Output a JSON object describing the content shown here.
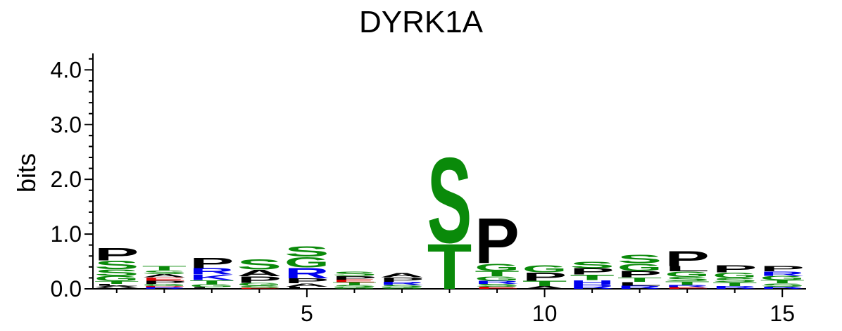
{
  "chart_data": {
    "type": "sequence-logo",
    "title": "DYRK1A",
    "ylabel": "bits",
    "xlabel": "",
    "ylim": [
      0,
      4.3
    ],
    "xlim": [
      0.5,
      15.5
    ],
    "y_ticks": [
      0.0,
      1.0,
      2.0,
      3.0,
      4.0
    ],
    "y_tick_labels": [
      "0.0",
      "1.0",
      "2.0",
      "3.0",
      "4.0"
    ],
    "x_ticks": [
      5,
      10,
      15
    ],
    "x_tick_labels": [
      "5",
      "10",
      "15"
    ],
    "colors": {
      "S": "#0a8a0a",
      "T": "#0a8a0a",
      "G": "#0a8a0a",
      "C": "#0a8a0a",
      "Y": "#0a8a0a",
      "P": "#000000",
      "A": "#000000",
      "L": "#000000",
      "I": "#000000",
      "V": "#000000",
      "M": "#000000",
      "F": "#000000",
      "W": "#000000",
      "R": "#0000ee",
      "K": "#0000ee",
      "H": "#0000ee",
      "D": "#dd0000",
      "E": "#dd0000",
      "N": "#800080",
      "Q": "#800080"
    },
    "positions": [
      {
        "pos": 1,
        "letters": [
          [
            "V",
            0.03
          ],
          [
            "A",
            0.03
          ],
          [
            "L",
            0.03
          ],
          [
            "T",
            0.05
          ],
          [
            "G",
            0.1
          ],
          [
            "S",
            0.12
          ],
          [
            "S",
            0.16
          ],
          [
            "P",
            0.23
          ]
        ]
      },
      {
        "pos": 2,
        "letters": [
          [
            "R",
            0.03
          ],
          [
            "D",
            0.02
          ],
          [
            "G",
            0.04
          ],
          [
            "P",
            0.06
          ],
          [
            "E",
            0.06
          ],
          [
            "A",
            0.06
          ],
          [
            "S",
            0.07
          ],
          [
            "T",
            0.08
          ]
        ]
      },
      {
        "pos": 3,
        "letters": [
          [
            "L",
            0.03
          ],
          [
            "G",
            0.05
          ],
          [
            "T",
            0.08
          ],
          [
            "K",
            0.1
          ],
          [
            "R",
            0.12
          ],
          [
            "P",
            0.2
          ]
        ]
      },
      {
        "pos": 4,
        "letters": [
          [
            "E",
            0.02
          ],
          [
            "S",
            0.04
          ],
          [
            "G",
            0.05
          ],
          [
            "P",
            0.12
          ],
          [
            "A",
            0.12
          ],
          [
            "S",
            0.2
          ]
        ]
      },
      {
        "pos": 5,
        "letters": [
          [
            "L",
            0.04
          ],
          [
            "A",
            0.06
          ],
          [
            "P",
            0.09
          ],
          [
            "R",
            0.2
          ],
          [
            "G",
            0.2
          ],
          [
            "S",
            0.2
          ]
        ]
      },
      {
        "pos": 6,
        "letters": [
          [
            "G",
            0.03
          ],
          [
            "S",
            0.04
          ],
          [
            "T",
            0.05
          ],
          [
            "E",
            0.05
          ],
          [
            "P",
            0.07
          ],
          [
            "S",
            0.08
          ]
        ]
      },
      {
        "pos": 7,
        "letters": [
          [
            "G",
            0.03
          ],
          [
            "S",
            0.04
          ],
          [
            "R",
            0.06
          ],
          [
            "P",
            0.08
          ],
          [
            "A",
            0.08
          ]
        ]
      },
      {
        "pos": 8,
        "letters": [
          [
            "T",
            0.85
          ],
          [
            "S",
            1.6
          ]
        ]
      },
      {
        "pos": 9,
        "letters": [
          [
            "E",
            0.04
          ],
          [
            "S",
            0.05
          ],
          [
            "R",
            0.06
          ],
          [
            "G",
            0.08
          ],
          [
            "T",
            0.1
          ],
          [
            "G",
            0.14
          ],
          [
            "P",
            0.85
          ]
        ]
      },
      {
        "pos": 10,
        "letters": [
          [
            "A",
            0.05
          ],
          [
            "T",
            0.1
          ],
          [
            "P",
            0.15
          ],
          [
            "G",
            0.14
          ]
        ]
      },
      {
        "pos": 11,
        "letters": [
          [
            "R",
            0.08
          ],
          [
            "H",
            0.08
          ],
          [
            "T",
            0.1
          ],
          [
            "P",
            0.12
          ],
          [
            "S",
            0.12
          ]
        ]
      },
      {
        "pos": 12,
        "letters": [
          [
            "R",
            0.06
          ],
          [
            "L",
            0.07
          ],
          [
            "T",
            0.08
          ],
          [
            "P",
            0.12
          ],
          [
            "G",
            0.14
          ],
          [
            "S",
            0.16
          ]
        ]
      },
      {
        "pos": 13,
        "letters": [
          [
            "E",
            0.03
          ],
          [
            "R",
            0.04
          ],
          [
            "T",
            0.07
          ],
          [
            "S",
            0.08
          ],
          [
            "G",
            0.1
          ],
          [
            "L",
            0.1
          ],
          [
            "P",
            0.28
          ]
        ]
      },
      {
        "pos": 14,
        "letters": [
          [
            "R",
            0.05
          ],
          [
            "T",
            0.07
          ],
          [
            "S",
            0.08
          ],
          [
            "G",
            0.1
          ],
          [
            "P",
            0.14
          ]
        ]
      },
      {
        "pos": 15,
        "letters": [
          [
            "R",
            0.04
          ],
          [
            "S",
            0.06
          ],
          [
            "T",
            0.06
          ],
          [
            "G",
            0.08
          ],
          [
            "R",
            0.08
          ],
          [
            "P",
            0.1
          ]
        ]
      }
    ]
  }
}
